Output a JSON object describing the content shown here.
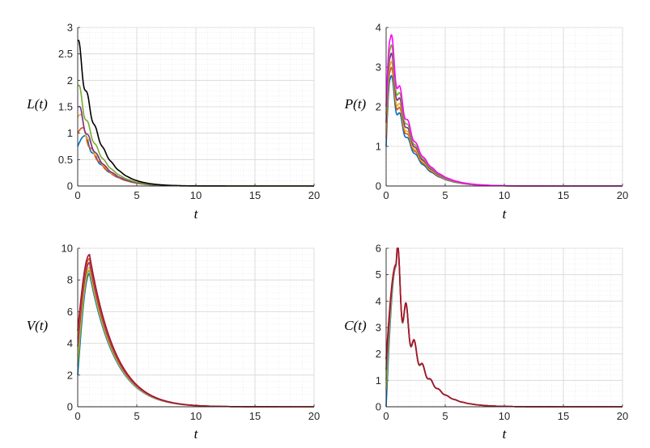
{
  "chart_data": [
    {
      "type": "line",
      "ylabel": "L(t)",
      "xlabel": "t",
      "xlim": [
        0,
        20
      ],
      "ylim": [
        0,
        3
      ],
      "xticks": [
        "0",
        "5",
        "10",
        "15",
        "20"
      ],
      "yticks": [
        "0",
        "0.5",
        "1",
        "1.5",
        "2",
        "2.5",
        "3"
      ],
      "grid": true,
      "minor_grid": true,
      "series": [
        {
          "color": "#0072BD",
          "initial": 0.75,
          "peak_t": 0.6,
          "peak": 0.95,
          "decay": 0.6,
          "wiggle": 0.08
        },
        {
          "color": "#D95319",
          "initial": 1.0,
          "peak_t": 0.4,
          "peak": 1.1,
          "decay": 0.6,
          "wiggle": 0.08
        },
        {
          "color": "#EDB120",
          "initial": 1.3,
          "peak_t": 0.2,
          "peak": 1.35,
          "decay": 0.6,
          "wiggle": 0.08
        },
        {
          "color": "#7E2F8E",
          "initial": 1.5,
          "peak_t": 0.1,
          "peak": 1.5,
          "decay": 0.6,
          "wiggle": 0.08
        },
        {
          "color": "#77AC30",
          "initial": 1.9,
          "peak_t": 0.05,
          "peak": 1.9,
          "decay": 0.6,
          "wiggle": 0.08
        },
        {
          "color": "#000000",
          "initial": 2.75,
          "peak_t": 0.0,
          "peak": 2.75,
          "decay": 0.6,
          "wiggle": 0.08
        }
      ]
    },
    {
      "type": "line",
      "ylabel": "P(t)",
      "xlabel": "t",
      "xlim": [
        0,
        20
      ],
      "ylim": [
        0,
        4
      ],
      "xticks": [
        "0",
        "5",
        "10",
        "15",
        "20"
      ],
      "yticks": [
        "0",
        "1",
        "2",
        "3",
        "4"
      ],
      "grid": true,
      "minor_grid": true,
      "series": [
        {
          "color": "#0072BD",
          "initial": 1.0,
          "peak_t": 0.35,
          "peak": 2.7,
          "decay": 0.55,
          "wiggle": 0.12
        },
        {
          "color": "#D95319",
          "initial": 1.2,
          "peak_t": 0.35,
          "peak": 2.9,
          "decay": 0.55,
          "wiggle": 0.12
        },
        {
          "color": "#EDB120",
          "initial": 1.4,
          "peak_t": 0.35,
          "peak": 3.05,
          "decay": 0.55,
          "wiggle": 0.12
        },
        {
          "color": "#7E2F8E",
          "initial": 1.6,
          "peak_t": 0.35,
          "peak": 3.25,
          "decay": 0.55,
          "wiggle": 0.12
        },
        {
          "color": "#77AC30",
          "initial": 1.8,
          "peak_t": 0.35,
          "peak": 3.45,
          "decay": 0.55,
          "wiggle": 0.12
        },
        {
          "color": "#FF00FF",
          "initial": 2.0,
          "peak_t": 0.35,
          "peak": 3.7,
          "decay": 0.55,
          "wiggle": 0.12
        }
      ]
    },
    {
      "type": "line",
      "ylabel": "V(t)",
      "xlabel": "t",
      "xlim": [
        0,
        20
      ],
      "ylim": [
        0,
        10
      ],
      "xticks": [
        "0",
        "5",
        "10",
        "15",
        "20"
      ],
      "yticks": [
        "0",
        "2",
        "4",
        "6",
        "8",
        "10"
      ],
      "grid": true,
      "minor_grid": true,
      "series": [
        {
          "color": "#0072BD",
          "initial": 2.0,
          "peak_t": 1.0,
          "peak": 8.4,
          "decay": 0.45,
          "wiggle": 0.0
        },
        {
          "color": "#77AC30",
          "initial": 2.6,
          "peak_t": 1.0,
          "peak": 8.6,
          "decay": 0.45,
          "wiggle": 0.0
        },
        {
          "color": "#EDB120",
          "initial": 3.2,
          "peak_t": 1.0,
          "peak": 8.8,
          "decay": 0.45,
          "wiggle": 0.0
        },
        {
          "color": "#7E2F8E",
          "initial": 3.8,
          "peak_t": 1.0,
          "peak": 9.1,
          "decay": 0.45,
          "wiggle": 0.0
        },
        {
          "color": "#D95319",
          "initial": 4.3,
          "peak_t": 1.0,
          "peak": 9.35,
          "decay": 0.45,
          "wiggle": 0.0
        },
        {
          "color": "#A2142F",
          "initial": 4.8,
          "peak_t": 1.0,
          "peak": 9.6,
          "decay": 0.45,
          "wiggle": 0.0
        }
      ]
    },
    {
      "type": "line",
      "ylabel": "C(t)",
      "xlabel": "t",
      "xlim": [
        0,
        20
      ],
      "ylim": [
        0,
        6
      ],
      "xticks": [
        "0",
        "5",
        "10",
        "15",
        "20"
      ],
      "yticks": [
        "0",
        "1",
        "2",
        "3",
        "4",
        "5",
        "6"
      ],
      "grid": true,
      "minor_grid": true,
      "series": [
        {
          "color": "#0072BD",
          "initial": 0.0,
          "peak_t": 0.85,
          "peak": 5.3,
          "decay": 0.55,
          "wiggle": 0.25
        },
        {
          "color": "#EDB120",
          "initial": 0.6,
          "peak_t": 0.85,
          "peak": 5.32,
          "decay": 0.55,
          "wiggle": 0.25
        },
        {
          "color": "#77AC30",
          "initial": 1.0,
          "peak_t": 0.85,
          "peak": 5.34,
          "decay": 0.55,
          "wiggle": 0.25
        },
        {
          "color": "#7E2F8E",
          "initial": 1.4,
          "peak_t": 0.85,
          "peak": 5.36,
          "decay": 0.55,
          "wiggle": 0.25
        },
        {
          "color": "#D95319",
          "initial": 1.8,
          "peak_t": 0.85,
          "peak": 5.38,
          "decay": 0.55,
          "wiggle": 0.25
        },
        {
          "color": "#A2142F",
          "initial": 1.8,
          "peak_t": 0.85,
          "peak": 5.4,
          "decay": 0.55,
          "wiggle": 0.25
        }
      ]
    }
  ]
}
